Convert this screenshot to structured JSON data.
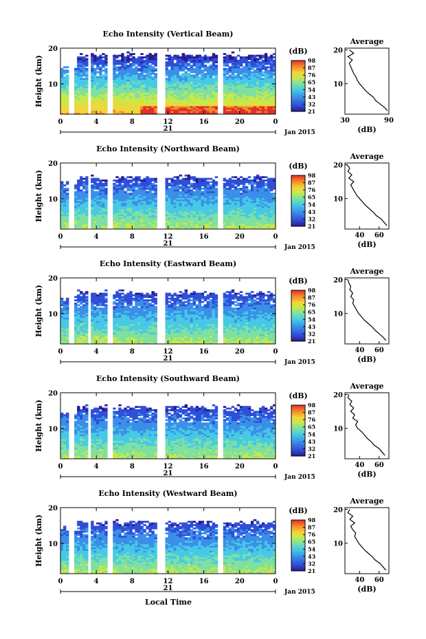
{
  "figure": {
    "xlabel_bottom": "Local Time",
    "date_label": "Jan 2015",
    "day_label": "21",
    "colorbar_unit": "(dB)",
    "avg_title": "Average",
    "avg_xlabel": "(dB)"
  },
  "colorscale": [
    "#2b1a8c",
    "#2f4fd8",
    "#3b8fe8",
    "#47c9e6",
    "#7fe0a0",
    "#c8e84a",
    "#f5d43a",
    "#f58a2a",
    "#e0302a"
  ],
  "chart_data": [
    {
      "type": "heatmap",
      "title": "Echo Intensity (Vertical Beam)",
      "ylabel": "Height (km)",
      "x_ticks": [
        "0",
        "4",
        "8",
        "12",
        "16",
        "20",
        "0"
      ],
      "x_range_hours": [
        0,
        24
      ],
      "y_ticks": [
        "10",
        "20"
      ],
      "y_range_km": [
        1.5,
        20
      ],
      "data_gaps_hours": [
        [
          1.0,
          1.6
        ],
        [
          3.0,
          3.5
        ],
        [
          5.3,
          5.9
        ],
        [
          10.8,
          11.8
        ],
        [
          17.5,
          18.1
        ]
      ],
      "colorbar": {
        "ticks": [
          "21",
          "32",
          "43",
          "54",
          "65",
          "76",
          "87",
          "98"
        ],
        "range_db": [
          21,
          98
        ]
      },
      "average": {
        "xticks": [
          "30",
          "90"
        ],
        "xlim": [
          30,
          90
        ],
        "yticks": [
          "10",
          "20"
        ],
        "height_km": [
          2,
          3,
          4,
          5,
          6,
          7,
          8,
          9,
          10,
          11,
          12,
          13,
          14,
          15,
          16,
          17,
          18,
          19,
          20
        ],
        "intensity_db": [
          88,
          84,
          78,
          72,
          69,
          63,
          58,
          54,
          50,
          47,
          45,
          42,
          40,
          38,
          36,
          40,
          34,
          42,
          36
        ]
      }
    },
    {
      "type": "heatmap",
      "title": "Echo Intensity (Northward Beam)",
      "ylabel": "Height (km)",
      "x_ticks": [
        "0",
        "4",
        "8",
        "12",
        "16",
        "20",
        "0"
      ],
      "x_range_hours": [
        0,
        24
      ],
      "y_ticks": [
        "10",
        "20"
      ],
      "y_range_km": [
        1.5,
        20
      ],
      "data_gaps_hours": [
        [
          1.0,
          1.6
        ],
        [
          3.0,
          3.5
        ],
        [
          5.3,
          5.9
        ],
        [
          10.8,
          11.8
        ],
        [
          17.5,
          18.1
        ]
      ],
      "colorbar": {
        "ticks": [
          "21",
          "32",
          "43",
          "54",
          "65",
          "76",
          "87",
          "98"
        ],
        "range_db": [
          21,
          98
        ]
      },
      "average": {
        "xticks": [
          "40",
          "60"
        ],
        "xlim": [
          25,
          70
        ],
        "yticks": [
          "10",
          "20"
        ],
        "height_km": [
          2,
          3,
          4,
          5,
          6,
          7,
          8,
          9,
          10,
          11,
          12,
          13,
          14,
          15,
          16,
          17,
          18,
          19,
          20
        ],
        "intensity_db": [
          68,
          65,
          62,
          57,
          54,
          50,
          46,
          43,
          40,
          37,
          35,
          33,
          31,
          34,
          29,
          32,
          28,
          30,
          27
        ]
      }
    },
    {
      "type": "heatmap",
      "title": "Echo Intensity (Eastward Beam)",
      "ylabel": "Height (km)",
      "x_ticks": [
        "0",
        "4",
        "8",
        "12",
        "16",
        "20",
        "0"
      ],
      "x_range_hours": [
        0,
        24
      ],
      "y_ticks": [
        "10",
        "20"
      ],
      "y_range_km": [
        1.5,
        20
      ],
      "data_gaps_hours": [
        [
          1.0,
          1.6
        ],
        [
          3.0,
          3.5
        ],
        [
          5.3,
          5.9
        ],
        [
          10.8,
          11.8
        ],
        [
          17.5,
          18.1
        ]
      ],
      "colorbar": {
        "ticks": [
          "21",
          "32",
          "43",
          "54",
          "65",
          "76",
          "87",
          "98"
        ],
        "range_db": [
          21,
          98
        ]
      },
      "average": {
        "xticks": [
          "40",
          "60"
        ],
        "xlim": [
          25,
          70
        ],
        "yticks": [
          "10",
          "20"
        ],
        "height_km": [
          2,
          3,
          4,
          5,
          6,
          7,
          8,
          9,
          10,
          11,
          12,
          13,
          14,
          15,
          16,
          17,
          18,
          19,
          20
        ],
        "intensity_db": [
          67,
          64,
          60,
          56,
          53,
          49,
          45,
          42,
          39,
          37,
          35,
          33,
          34,
          31,
          33,
          30,
          31,
          29,
          28
        ]
      }
    },
    {
      "type": "heatmap",
      "title": "Echo Intensity (Southward Beam)",
      "ylabel": "Height (km)",
      "x_ticks": [
        "0",
        "4",
        "8",
        "12",
        "16",
        "20",
        "0"
      ],
      "x_range_hours": [
        0,
        24
      ],
      "y_ticks": [
        "10",
        "20"
      ],
      "y_range_km": [
        1.5,
        20
      ],
      "data_gaps_hours": [
        [
          1.0,
          1.6
        ],
        [
          3.0,
          3.5
        ],
        [
          5.3,
          5.9
        ],
        [
          10.8,
          11.8
        ],
        [
          17.5,
          18.1
        ]
      ],
      "colorbar": {
        "ticks": [
          "21",
          "32",
          "43",
          "54",
          "65",
          "76",
          "87",
          "98"
        ],
        "range_db": [
          21,
          98
        ]
      },
      "average": {
        "xticks": [
          "40",
          "60"
        ],
        "xlim": [
          25,
          70
        ],
        "yticks": [
          "10",
          "20"
        ],
        "height_km": [
          2,
          3,
          4,
          5,
          6,
          7,
          8,
          9,
          10,
          11,
          12,
          13,
          14,
          15,
          16,
          17,
          18,
          19,
          20
        ],
        "intensity_db": [
          66,
          63,
          60,
          55,
          52,
          48,
          45,
          42,
          38,
          36,
          38,
          33,
          35,
          31,
          34,
          30,
          32,
          28,
          29
        ]
      }
    },
    {
      "type": "heatmap",
      "title": "Echo Intensity (Westward Beam)",
      "ylabel": "Height (km)",
      "x_ticks": [
        "0",
        "4",
        "8",
        "12",
        "16",
        "20",
        "0"
      ],
      "x_range_hours": [
        0,
        24
      ],
      "y_ticks": [
        "10",
        "20"
      ],
      "y_range_km": [
        1.5,
        20
      ],
      "data_gaps_hours": [
        [
          1.0,
          1.6
        ],
        [
          3.0,
          3.5
        ],
        [
          5.3,
          5.9
        ],
        [
          10.8,
          11.8
        ],
        [
          17.5,
          18.1
        ]
      ],
      "colorbar": {
        "ticks": [
          "21",
          "32",
          "43",
          "54",
          "65",
          "76",
          "87",
          "98"
        ],
        "range_db": [
          21,
          98
        ]
      },
      "average": {
        "xticks": [
          "40",
          "60"
        ],
        "xlim": [
          25,
          70
        ],
        "yticks": [
          "10",
          "20"
        ],
        "height_km": [
          2,
          3,
          4,
          5,
          6,
          7,
          8,
          9,
          10,
          11,
          12,
          13,
          14,
          15,
          16,
          17,
          18,
          19,
          20
        ],
        "intensity_db": [
          67,
          64,
          61,
          56,
          53,
          49,
          45,
          42,
          39,
          37,
          35,
          36,
          33,
          31,
          35,
          30,
          33,
          28,
          30
        ]
      }
    }
  ]
}
